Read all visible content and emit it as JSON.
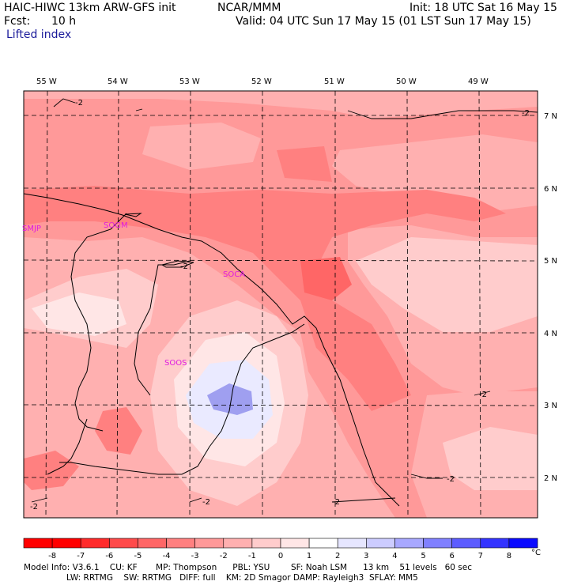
{
  "header": {
    "model": "HAIC-HIWC 13km ARW-GFS init",
    "org": "NCAR/MMM",
    "init": "Init: 18 UTC Sat 16 May 15",
    "fcst_label": "Fcst:",
    "fcst_value": "10 h",
    "valid": "Valid: 04 UTC Sun 17 May 15 (01 LST Sun 17 May 15)",
    "field": "Lifted index"
  },
  "map": {
    "lon_labels": [
      "55 W",
      "54 W",
      "53 W",
      "52 W",
      "51 W",
      "50 W",
      "49 W"
    ],
    "lat_labels": [
      "7 N",
      "6 N",
      "5 N",
      "4 N",
      "3 N",
      "2 N"
    ],
    "stations": [
      "SMJP",
      "SOGM",
      "SOCA",
      "SOOS"
    ],
    "contour_labels": [
      "-2",
      "-2",
      "-2",
      "-2",
      "-2",
      "-2",
      "-2",
      "-2",
      "-2",
      "-2"
    ]
  },
  "colorbar": {
    "ticks": [
      "-8",
      "-7",
      "-6",
      "-5",
      "-4",
      "-3",
      "-2",
      "-1",
      "0",
      "1",
      "2",
      "3",
      "4",
      "5",
      "6",
      "7",
      "8"
    ],
    "unit": "°C",
    "colors": [
      "#ff0000",
      "#ff2a2a",
      "#ff4a4a",
      "#ff6666",
      "#ff8080",
      "#ff9999",
      "#ffb0b0",
      "#ffcccc",
      "#ffe6e6",
      "#ffffff",
      "#e6e6ff",
      "#ccccff",
      "#a8a8ff",
      "#8080ff",
      "#5c5cff",
      "#3333ff",
      "#0a0aff"
    ]
  },
  "footer": {
    "line1": "Model Info: V3.6.1    CU: KF       MP: Thompson      PBL: YSU        SF: Noah LSM      13 km    51 levels   60 sec",
    "line2": "LW: RRTMG    SW: RRTMG   DIFF: full    KM: 2D Smagor DAMP: Rayleigh3  SFLAY: MM5"
  }
}
